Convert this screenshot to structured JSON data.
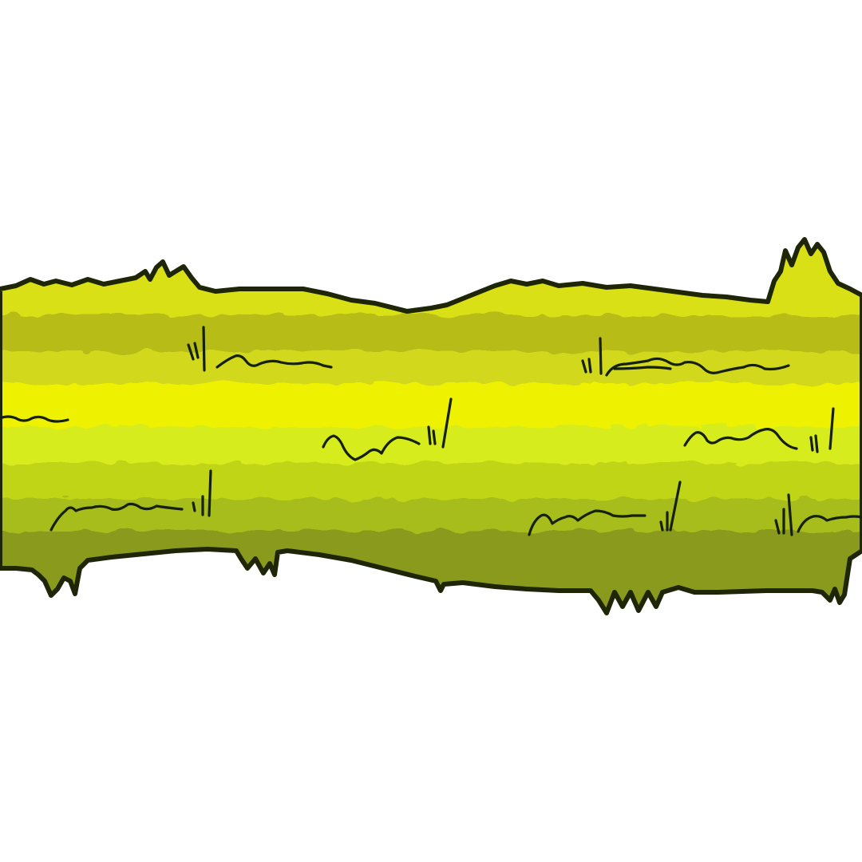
{
  "scene": {
    "background_color": "#ffffff",
    "tile_name": "grass-ground-tile",
    "outline_color": "#1f2608",
    "stroke_color": "#15200d",
    "bands": [
      {
        "name": "highlight-band",
        "color": "#d9e019"
      },
      {
        "name": "upper-dark-band",
        "color": "#b7bc17"
      },
      {
        "name": "upper-mid-band",
        "color": "#d2d81a"
      },
      {
        "name": "bright-band",
        "color": "#eef205"
      },
      {
        "name": "light-band",
        "color": "#d6ec1a"
      },
      {
        "name": "mid-band",
        "color": "#bfd516"
      },
      {
        "name": "lower-band",
        "color": "#a7bd1a"
      },
      {
        "name": "shadow-band",
        "color": "#8a9a1c"
      }
    ]
  }
}
